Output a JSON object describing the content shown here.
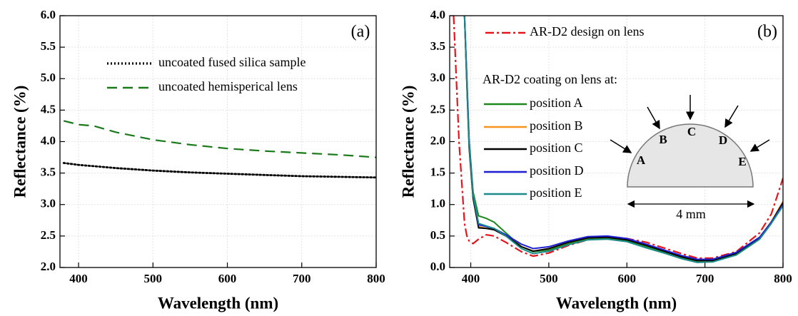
{
  "chart_data": [
    {
      "type": "line",
      "panel_label": "(a)",
      "x_label": "Wavelength (nm)",
      "y_label": "Reflectance (%)",
      "x": [
        380,
        390,
        400,
        420,
        450,
        500,
        550,
        600,
        650,
        700,
        750,
        800
      ],
      "series": [
        {
          "name": "uncoated fused silica sample",
          "color": "#000000",
          "style": "dotted",
          "values": [
            3.66,
            3.645,
            3.63,
            3.61,
            3.58,
            3.54,
            3.51,
            3.49,
            3.47,
            3.45,
            3.44,
            3.43
          ]
        },
        {
          "name": "uncoated hemisperical lens",
          "color": "#1a7a1a",
          "style": "dashed",
          "values": [
            4.33,
            4.3,
            4.27,
            4.25,
            4.15,
            4.03,
            3.95,
            3.89,
            3.85,
            3.82,
            3.79,
            3.75
          ]
        }
      ],
      "xlim": [
        375,
        800
      ],
      "ylim": [
        2.0,
        6.0
      ],
      "xticks": [
        400,
        500,
        600,
        700,
        800
      ],
      "yticks": [
        {
          "value": 2.0,
          "label": "2.0"
        },
        {
          "value": 2.5,
          "label": "2.5"
        },
        {
          "value": 3.0,
          "label": "3.0"
        },
        {
          "value": 3.5,
          "label": "3.5"
        },
        {
          "value": 4.0,
          "label": "4.0"
        },
        {
          "value": 4.5,
          "label": "4.5"
        },
        {
          "value": 5.0,
          "label": "5.0"
        },
        {
          "value": 5.5,
          "label": "5.5"
        },
        {
          "value": 6.0,
          "label": "6.0"
        }
      ],
      "grid": true
    },
    {
      "type": "line",
      "panel_label": "(b)",
      "x_label": "Wavelength (nm)",
      "y_label": "Reflectance (%)",
      "legend_title": "AR-D2 coating on lens at:",
      "inset_labels": [
        "A",
        "B",
        "C",
        "D",
        "E"
      ],
      "inset_scale": "4 mm",
      "x": [
        378,
        385,
        392,
        395,
        398,
        403,
        410,
        420,
        430,
        445,
        465,
        480,
        500,
        525,
        550,
        575,
        600,
        625,
        650,
        670,
        690,
        710,
        740,
        770,
        785,
        800
      ],
      "series": [
        {
          "name": "AR-D2 design on lens",
          "color": "#e8141b",
          "style": "dashdot",
          "values": [
            4.0,
            2.0,
            0.7,
            0.5,
            0.42,
            0.38,
            0.45,
            0.52,
            0.5,
            0.4,
            0.25,
            0.18,
            0.23,
            0.35,
            0.44,
            0.47,
            0.46,
            0.4,
            0.3,
            0.22,
            0.15,
            0.15,
            0.25,
            0.55,
            0.85,
            1.42
          ]
        },
        {
          "name": "position A",
          "color": "#1e8a1e",
          "style": "solid",
          "values": [
            null,
            null,
            4.0,
            3.0,
            2.0,
            1.2,
            0.82,
            0.78,
            0.72,
            0.55,
            0.33,
            0.25,
            0.28,
            0.38,
            0.45,
            0.46,
            0.42,
            0.33,
            0.24,
            0.16,
            0.1,
            0.1,
            0.2,
            0.45,
            0.7,
            1.02
          ]
        },
        {
          "name": "position B",
          "color": "#f7941d",
          "style": "solid",
          "values": [
            null,
            null,
            4.0,
            2.9,
            1.9,
            1.1,
            0.65,
            0.62,
            0.62,
            0.5,
            0.33,
            0.26,
            0.3,
            0.4,
            0.47,
            0.48,
            0.44,
            0.35,
            0.25,
            0.17,
            0.11,
            0.11,
            0.22,
            0.48,
            0.73,
            1.05
          ]
        },
        {
          "name": "position C",
          "color": "#000000",
          "style": "solid",
          "values": [
            null,
            null,
            4.0,
            2.9,
            1.9,
            1.1,
            0.63,
            0.62,
            0.6,
            0.5,
            0.33,
            0.26,
            0.3,
            0.4,
            0.47,
            0.48,
            0.44,
            0.35,
            0.25,
            0.17,
            0.11,
            0.11,
            0.22,
            0.47,
            0.72,
            1.03
          ]
        },
        {
          "name": "position D",
          "color": "#1f1fd6",
          "style": "solid",
          "values": [
            null,
            null,
            4.0,
            3.0,
            2.0,
            1.15,
            0.68,
            0.65,
            0.62,
            0.52,
            0.37,
            0.3,
            0.33,
            0.42,
            0.49,
            0.5,
            0.46,
            0.37,
            0.27,
            0.19,
            0.13,
            0.13,
            0.24,
            0.48,
            0.72,
            1.0
          ]
        },
        {
          "name": "position E",
          "color": "#1a8a8a",
          "style": "solid",
          "values": [
            null,
            null,
            4.0,
            2.95,
            1.95,
            1.15,
            0.7,
            0.66,
            0.62,
            0.5,
            0.3,
            0.22,
            0.26,
            0.36,
            0.44,
            0.45,
            0.41,
            0.31,
            0.22,
            0.14,
            0.08,
            0.09,
            0.2,
            0.45,
            0.7,
            0.98
          ]
        }
      ],
      "xlim": [
        373,
        800
      ],
      "ylim": [
        0.0,
        4.0
      ],
      "xticks": [
        400,
        500,
        600,
        700,
        800
      ],
      "yticks": [
        {
          "value": 0.0,
          "label": "0.0"
        },
        {
          "value": 0.5,
          "label": "0.5"
        },
        {
          "value": 1.0,
          "label": "1.0"
        },
        {
          "value": 1.5,
          "label": "1.5"
        },
        {
          "value": 2.0,
          "label": "2.0"
        },
        {
          "value": 2.5,
          "label": "2.5"
        },
        {
          "value": 3.0,
          "label": "3.0"
        },
        {
          "value": 3.5,
          "label": "3.5"
        },
        {
          "value": 4.0,
          "label": "4.0"
        }
      ],
      "grid": true
    }
  ]
}
